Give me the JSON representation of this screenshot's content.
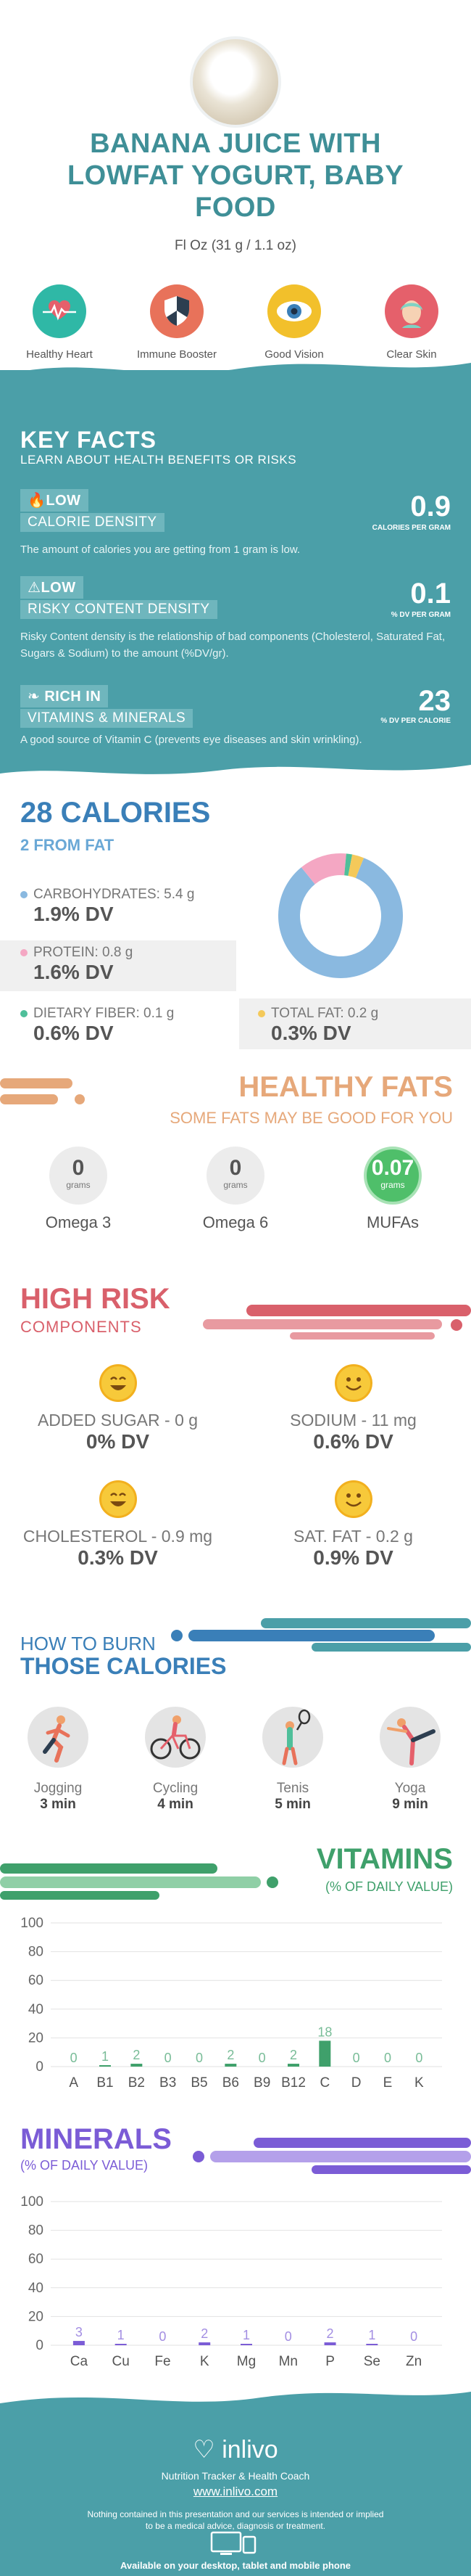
{
  "header": {
    "title": "BANANA JUICE WITH LOWFAT YOGURT, BABY FOOD",
    "serving": "Fl Oz (31 g / 1.1 oz)"
  },
  "benefits": [
    {
      "label": "Healthy Heart",
      "icon": "heart-monitor-icon",
      "color": "#2fb8a6"
    },
    {
      "label": "Immune Booster",
      "icon": "shield-icon",
      "color": "#e8725a"
    },
    {
      "label": "Good Vision",
      "icon": "eye-icon",
      "color": "#f2c02b"
    },
    {
      "label": "Clear Skin",
      "icon": "face-icon",
      "color": "#e5606b"
    }
  ],
  "key_facts": {
    "title": "KEY FACTS",
    "subtitle": "LEARN ABOUT HEALTH BENEFITS OR RISKS",
    "items": [
      {
        "level": "LOW",
        "name": "CALORIE DENSITY",
        "value": "0.9",
        "unit": "CALORIES PER GRAM",
        "desc": "The amount of calories you are getting from 1 gram is low."
      },
      {
        "level": "LOW",
        "name": "RISKY CONTENT DENSITY",
        "value": "0.1",
        "unit": "% DV PER GRAM",
        "desc": "Risky Content density is the relationship of bad components (Cholesterol, Saturated Fat, Sugars & Sodium) to the amount (%DV/gr)."
      },
      {
        "level": "RICH IN",
        "name": "VITAMINS & MINERALS",
        "value": "23",
        "unit": "% DV PER CALORIE",
        "desc": "A good source of Vitamin C (prevents eye diseases and skin wrinkling)."
      }
    ]
  },
  "calories": {
    "title": "28 CALORIES",
    "subtitle": "2 FROM FAT",
    "macros": [
      {
        "name": "CARBOHYDRATES: 5.4 g",
        "dv": "1.9% DV",
        "color": "#8ab9e0"
      },
      {
        "name": "PROTEIN: 0.8 g",
        "dv": "1.6% DV",
        "color": "#f4a7c3"
      },
      {
        "name": "DIETARY FIBER: 0.1 g",
        "dv": "0.6% DV",
        "color": "#4fbf9a"
      },
      {
        "name": "TOTAL FAT: 0.2 g",
        "dv": "0.3% DV",
        "color": "#f4c95a"
      }
    ]
  },
  "chart_data": [
    {
      "type": "pie",
      "categories": [
        "Carbohydrates",
        "Protein",
        "Dietary Fiber",
        "Total Fat"
      ],
      "values": [
        5.4,
        0.8,
        0.1,
        0.2
      ],
      "colors": [
        "#8ab9e0",
        "#f4a7c3",
        "#4fbf9a",
        "#f4c95a"
      ]
    },
    {
      "type": "bar",
      "categories": [
        "A",
        "B1",
        "B2",
        "B3",
        "B5",
        "B6",
        "B9",
        "B12",
        "C",
        "D",
        "E",
        "K"
      ],
      "values": [
        0,
        1,
        2,
        0,
        0,
        2,
        0,
        2,
        18,
        0,
        0,
        0
      ],
      "ylim": [
        0,
        100
      ],
      "yticks": [
        0,
        20,
        40,
        60,
        80,
        100
      ],
      "color": "#3fa06b"
    },
    {
      "type": "bar",
      "categories": [
        "Ca",
        "Cu",
        "Fe",
        "K",
        "Mg",
        "Mn",
        "P",
        "Se",
        "Zn"
      ],
      "values": [
        3,
        1,
        0,
        2,
        1,
        0,
        2,
        1,
        0
      ],
      "ylim": [
        0,
        100
      ],
      "yticks": [
        0,
        20,
        40,
        60,
        80,
        100
      ],
      "color": "#7b5cd6"
    }
  ],
  "healthy_fats": {
    "title": "HEALTHY FATS",
    "subtitle": "SOME FATS MAY BE GOOD FOR YOU",
    "unit": "grams",
    "items": [
      {
        "name": "Omega 3",
        "value": "0"
      },
      {
        "name": "Omega 6",
        "value": "0"
      },
      {
        "name": "MUFAs",
        "value": "0.07"
      }
    ],
    "highlight_color": "#4fbf6a"
  },
  "high_risk": {
    "title": "HIGH RISK",
    "subtitle": "COMPONENTS",
    "items": [
      {
        "name": "ADDED SUGAR - 0 g",
        "dv": "0% DV"
      },
      {
        "name": "SODIUM - 11 mg",
        "dv": "0.6% DV"
      },
      {
        "name": "CHOLESTEROL - 0.9 mg",
        "dv": "0.3% DV"
      },
      {
        "name": "SAT. FAT - 0.2 g",
        "dv": "0.9% DV"
      }
    ]
  },
  "burn": {
    "line1": "HOW TO BURN",
    "line2": "THOSE CALORIES",
    "activities": [
      {
        "name": "Jogging",
        "minutes": "3 min",
        "icon": "jogging-icon"
      },
      {
        "name": "Cycling",
        "minutes": "4 min",
        "icon": "cycling-icon"
      },
      {
        "name": "Tenis",
        "minutes": "5 min",
        "icon": "tennis-icon"
      },
      {
        "name": "Yoga",
        "minutes": "9 min",
        "icon": "yoga-icon"
      }
    ]
  },
  "vitamins": {
    "title": "VITAMINS",
    "subtitle": "(% OF DAILY VALUE)"
  },
  "minerals": {
    "title": "MINERALS",
    "subtitle": "(% OF DAILY VALUE)"
  },
  "footer": {
    "brand": "inlivo",
    "tagline": "Nutrition Tracker & Health Coach",
    "url": "www.inlivo.com",
    "disclaimer1": "Nothing contained in this presentation and our services is intended or implied",
    "disclaimer2": "to be a medical advice, diagnosis or treatment.",
    "available": "Available on your desktop, tablet and mobile phone"
  }
}
